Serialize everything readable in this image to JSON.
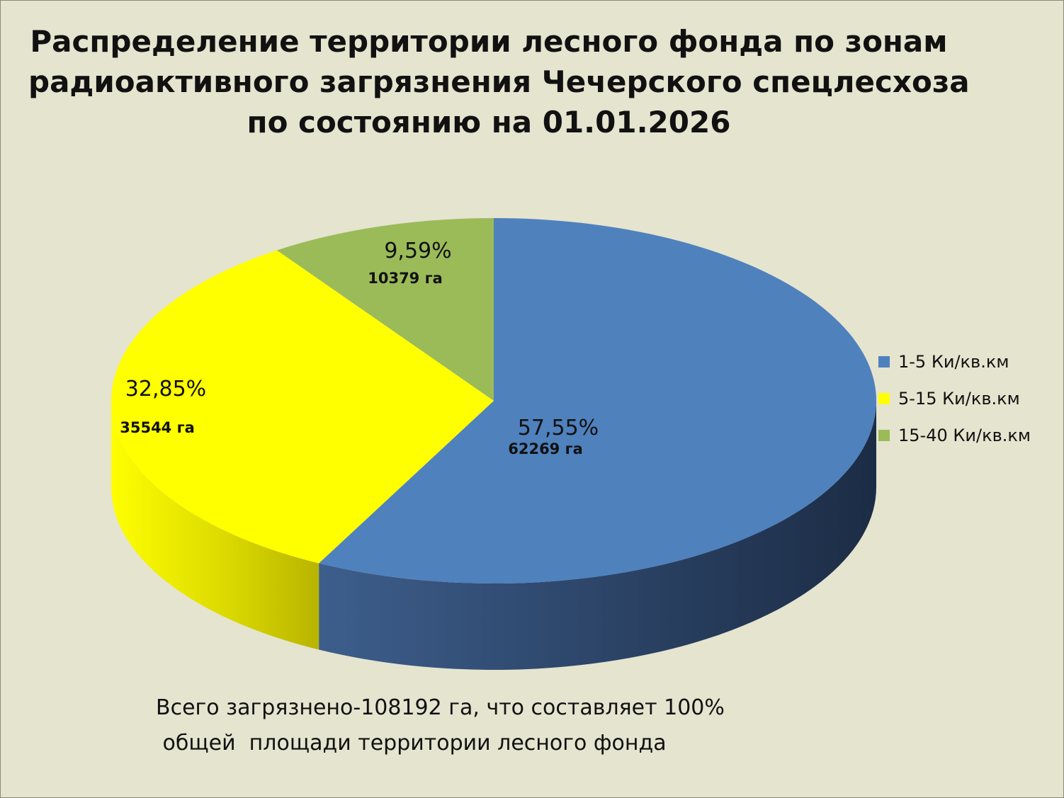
{
  "title_lines": [
    "Распределение территории лесного фонда по зонам",
    "радиоактивного загрязнения Чечерского спецлесхоза",
    "по состоянию на 01.01.2026"
  ],
  "chart_data": {
    "type": "pie",
    "title": "Распределение территории лесного фонда по зонам радиоактивного загрязнения Чечерского спецлесхоза по состоянию на 01.01.2026",
    "style": "3d",
    "categories": [
      "1-5 Ки/кв.км",
      "5-15 Ки/кв.км",
      "15-40 Ки/кв.км"
    ],
    "values": [
      57.55,
      32.85,
      9.59
    ],
    "value_labels": [
      "57,55%",
      "32,85%",
      "9,59%"
    ],
    "area_labels": [
      "62269 га",
      "35544 га",
      "10379 га"
    ],
    "colors": [
      "#4f81bd",
      "#ffff00",
      "#9bbb59"
    ],
    "legend_position": "right"
  },
  "footnote": {
    "line1": "Всего загрязнено-108192 га, что составляет 100%",
    "line2": " общей  площади территории лесного фонда"
  }
}
